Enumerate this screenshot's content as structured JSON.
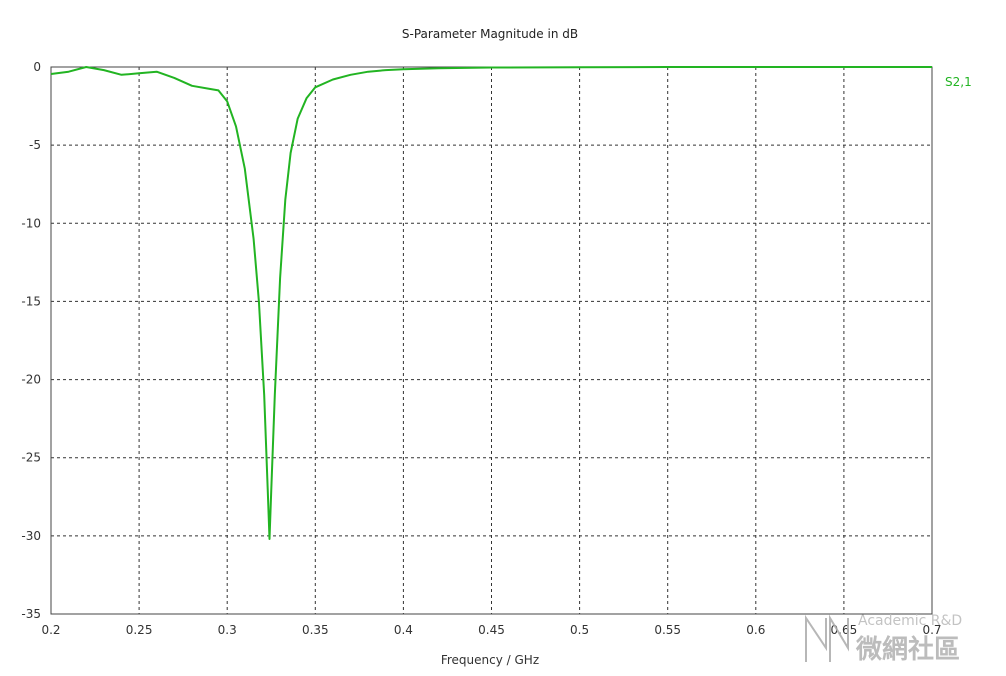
{
  "chart_data": {
    "type": "line",
    "title": "S-Parameter Magnitude in dB",
    "xlabel": "Frequency / GHz",
    "ylabel": "",
    "xlim": [
      0.2,
      0.7
    ],
    "ylim": [
      -35,
      0
    ],
    "xticks": [
      "0.2",
      "0.25",
      "0.3",
      "0.35",
      "0.4",
      "0.45",
      "0.5",
      "0.55",
      "0.6",
      "0.65",
      "0.7"
    ],
    "yticks": [
      "0",
      "-5",
      "-10",
      "-15",
      "-20",
      "-25",
      "-30",
      "-35"
    ],
    "grid": true,
    "legend_placement": "right",
    "series": [
      {
        "name": "S2,1",
        "color": "#22b422",
        "x": [
          0.2,
          0.21,
          0.22,
          0.23,
          0.24,
          0.25,
          0.26,
          0.27,
          0.28,
          0.29,
          0.295,
          0.3,
          0.305,
          0.31,
          0.315,
          0.318,
          0.321,
          0.323,
          0.324,
          0.325,
          0.327,
          0.33,
          0.333,
          0.336,
          0.34,
          0.345,
          0.35,
          0.36,
          0.37,
          0.38,
          0.39,
          0.4,
          0.42,
          0.45,
          0.5,
          0.55,
          0.6,
          0.65,
          0.7
        ],
        "y": [
          -0.45,
          -0.3,
          0.0,
          -0.2,
          -0.5,
          -0.4,
          -0.3,
          -0.7,
          -1.2,
          -1.4,
          -1.5,
          -2.2,
          -3.8,
          -6.5,
          -11,
          -15,
          -21,
          -27,
          -30.2,
          -27,
          -21,
          -13.5,
          -8.5,
          -5.5,
          -3.3,
          -2.0,
          -1.3,
          -0.8,
          -0.5,
          -0.3,
          -0.2,
          -0.15,
          -0.08,
          -0.03,
          -0.01,
          0,
          0,
          0,
          0
        ]
      }
    ]
  },
  "watermark": {
    "line1": "Academic R&D",
    "line2": "微網社區",
    "color": "#b8b8b8"
  }
}
